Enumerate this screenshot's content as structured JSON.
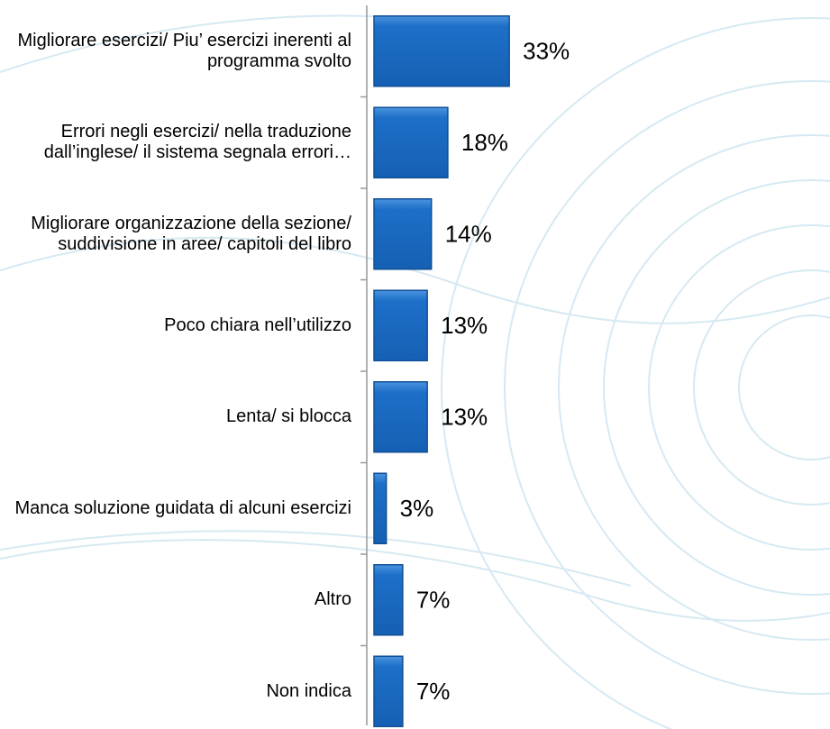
{
  "chart_data": {
    "type": "hbar",
    "categories": [
      "Migliorare esercizi/ Piu’ esercizi inerenti al programma svolto",
      "Errori negli esercizi/ nella traduzione dall’inglese/ il sistema segnala errori…",
      "Migliorare organizzazione della sezione/ suddivisione in aree/ capitoli del libro",
      "Poco chiara nell’utilizzo",
      "Lenta/ si blocca",
      "Manca soluzione guidata di alcuni esercizi",
      "Altro",
      "Non indica"
    ],
    "values": [
      33,
      18,
      14,
      13,
      13,
      3,
      7,
      7
    ],
    "value_labels": [
      "33%",
      "18%",
      "14%",
      "13%",
      "13%",
      "3%",
      "7%",
      "7%"
    ],
    "color": "#1d6fc8"
  }
}
